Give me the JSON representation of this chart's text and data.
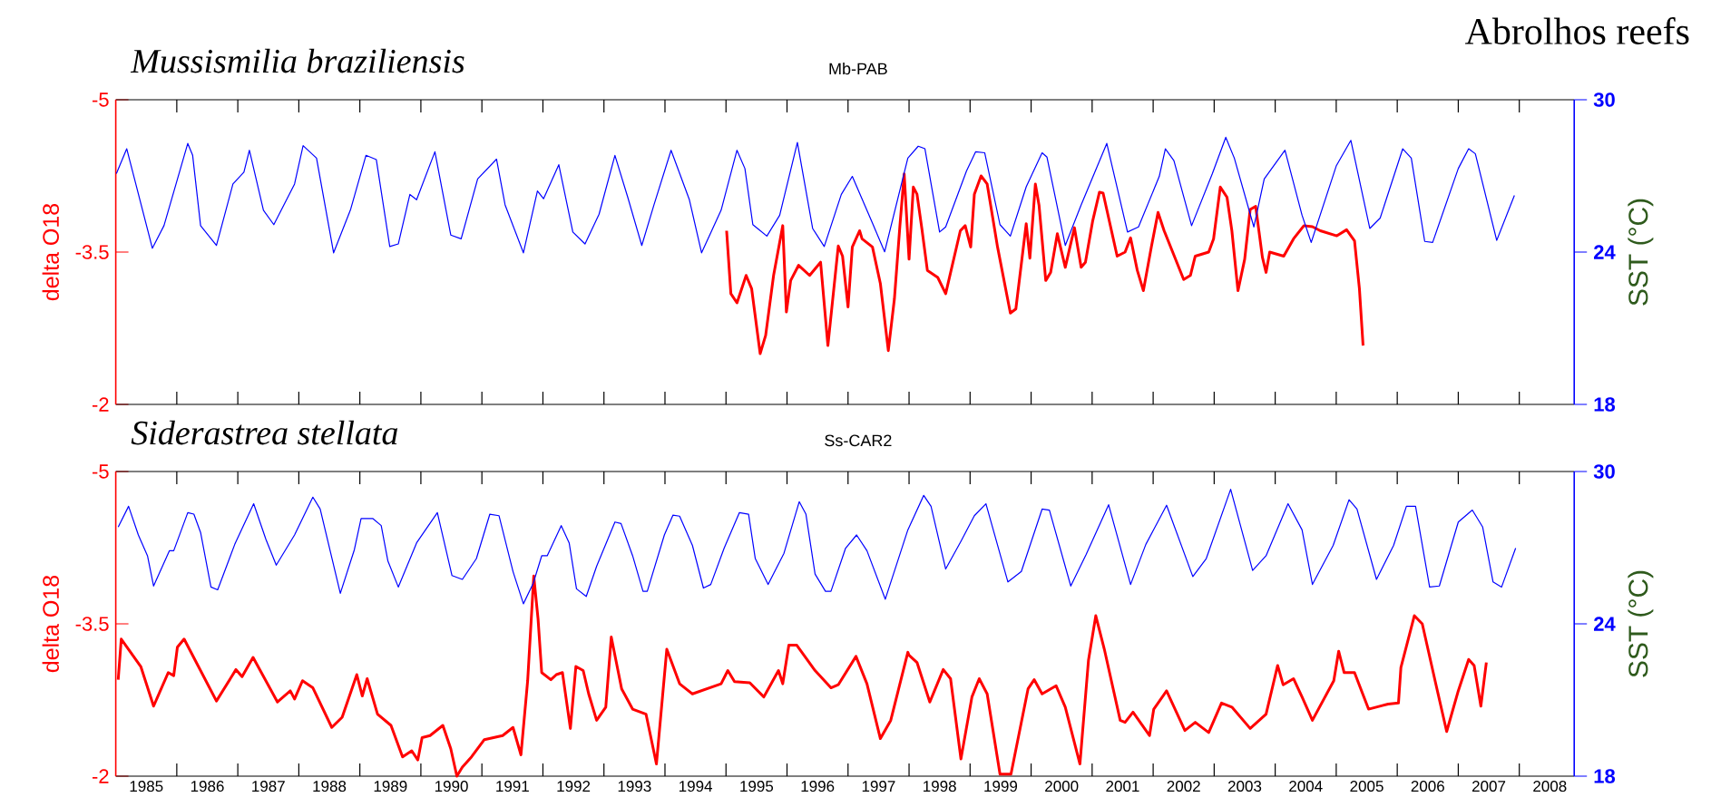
{
  "chart_data": [
    {
      "type": "line",
      "title": "Mussismilia braziliensis",
      "subtitle": "Mb-PAB",
      "ylabel": "delta O18",
      "y2label": "SST (°C)",
      "annotations": [
        "Abrolhos reefs"
      ],
      "xlim": [
        1985,
        2008.9
      ],
      "ylim": [
        -2,
        -5
      ],
      "yticks": [
        -5,
        -3.5,
        -2
      ],
      "y2lim": [
        18,
        30
      ],
      "y2ticks": [
        18,
        24,
        30
      ],
      "tick_labels": "y",
      "xticks": [
        {
          "value": 1986,
          "label": null
        },
        {
          "value": 1987,
          "label": null
        },
        {
          "value": 1988,
          "label": null
        },
        {
          "value": 1989,
          "label": null
        },
        {
          "value": 1990,
          "label": null
        },
        {
          "value": 1991,
          "label": null
        },
        {
          "value": 1992,
          "label": null
        },
        {
          "value": 1993,
          "label": null
        },
        {
          "value": 1994,
          "label": null
        },
        {
          "value": 1995,
          "label": null
        },
        {
          "value": 1996,
          "label": null
        },
        {
          "value": 1997,
          "label": null
        },
        {
          "value": 1998,
          "label": null
        },
        {
          "value": 1999,
          "label": null
        },
        {
          "value": 2000,
          "label": null
        },
        {
          "value": 2001,
          "label": null
        },
        {
          "value": 2002,
          "label": null
        },
        {
          "value": 2003,
          "label": null
        },
        {
          "value": 2004,
          "label": null
        },
        {
          "value": 2005,
          "label": null
        },
        {
          "value": 2006,
          "label": null
        },
        {
          "value": 2007,
          "label": null
        },
        {
          "value": 2008,
          "label": null
        }
      ],
      "series": [
        {
          "color": "#0000ff",
          "axis": "y2",
          "x": [
            1985.01,
            1985.18,
            1985.6,
            1985.79,
            1986.18,
            1986.26,
            1986.39,
            1986.65,
            1986.92,
            1987.1,
            1987.19,
            1987.42,
            1987.59,
            1987.93,
            1988.07,
            1988.29,
            1988.57,
            1988.85,
            1989.1,
            1989.27,
            1989.49,
            1989.63,
            1989.82,
            1989.93,
            1990.23,
            1990.49,
            1990.66,
            1990.93,
            1991.24,
            1991.38,
            1991.68,
            1991.91,
            1992.01,
            1992.26,
            1992.49,
            1992.69,
            1992.92,
            1993.18,
            1993.39,
            1993.62,
            1993.82,
            1994.1,
            1994.4,
            1994.6,
            1994.92,
            1995.18,
            1995.31,
            1995.44,
            1995.67,
            1995.88,
            1996.17,
            1996.42,
            1996.61,
            1996.89,
            1997.07,
            1997.4,
            1997.6,
            1997.98,
            1998.15,
            1998.26,
            1998.5,
            1998.6,
            1998.94,
            1999.09,
            1999.24,
            1999.49,
            1999.66,
            1999.92,
            2000.18,
            2000.26,
            2000.56,
            2000.82,
            2001.24,
            2001.58,
            2001.76,
            2002.1,
            2002.2,
            2002.34,
            2002.63,
            2002.97,
            2003.19,
            2003.33,
            2003.65,
            2003.82,
            2004.16,
            2004.44,
            2004.59,
            2005.0,
            2005.24,
            2005.55,
            2005.72,
            2006.09,
            2006.23,
            2006.45,
            2006.58,
            2007.0,
            2007.17,
            2007.28,
            2007.63,
            2007.92
          ],
          "values": [
            27.09,
            28.07,
            24.15,
            25.04,
            28.28,
            27.81,
            25.04,
            24.26,
            26.68,
            27.15,
            28.01,
            25.65,
            25.08,
            26.68,
            28.19,
            27.7,
            23.97,
            25.69,
            27.81,
            27.64,
            24.22,
            24.32,
            26.27,
            26.06,
            27.95,
            24.67,
            24.52,
            26.88,
            27.66,
            25.86,
            23.97,
            26.41,
            26.1,
            27.44,
            24.79,
            24.32,
            25.49,
            27.81,
            26.16,
            24.26,
            25.86,
            28.01,
            26.06,
            23.97,
            25.65,
            28.01,
            27.29,
            25.08,
            24.63,
            25.45,
            28.32,
            24.93,
            24.22,
            26.27,
            26.98,
            25.14,
            24.01,
            27.7,
            28.17,
            28.07,
            24.79,
            24.99,
            27.19,
            27.95,
            27.91,
            25.08,
            24.63,
            26.57,
            27.91,
            27.74,
            24.26,
            25.86,
            28.28,
            24.79,
            24.99,
            26.98,
            28.07,
            27.6,
            25.04,
            27.09,
            28.52,
            27.7,
            24.99,
            26.88,
            28.01,
            25.45,
            24.38,
            27.39,
            28.4,
            24.93,
            25.34,
            28.07,
            27.7,
            24.42,
            24.38,
            27.29,
            28.07,
            27.87,
            24.46,
            26.23
          ]
        },
        {
          "color": "#ff0000",
          "axis": "y",
          "x": [
            1995.01,
            1995.08,
            1995.18,
            1995.33,
            1995.42,
            1995.56,
            1995.65,
            1995.78,
            1995.93,
            1995.99,
            1996.06,
            1996.19,
            1996.37,
            1996.55,
            1996.67,
            1996.84,
            1996.91,
            1997.0,
            1997.07,
            1997.19,
            1997.23,
            1997.4,
            1997.53,
            1997.66,
            1997.76,
            1997.85,
            1997.92,
            1998.0,
            1998.07,
            1998.13,
            1998.21,
            1998.3,
            1998.47,
            1998.6,
            1998.84,
            1998.92,
            1999.01,
            1999.07,
            1999.18,
            1999.28,
            1999.45,
            1999.66,
            1999.75,
            1999.92,
            1999.98,
            2000.07,
            2000.13,
            2000.24,
            2000.32,
            2000.43,
            2000.56,
            2000.71,
            2000.82,
            2000.89,
            2001.01,
            2001.12,
            2001.18,
            2001.41,
            2001.54,
            2001.63,
            2001.74,
            2001.84,
            2001.97,
            2002.08,
            2002.18,
            2002.5,
            2002.61,
            2002.69,
            2002.91,
            2002.99,
            2003.1,
            2003.21,
            2003.29,
            2003.39,
            2003.5,
            2003.59,
            2003.68,
            2003.79,
            2003.85,
            2003.91,
            2004.14,
            2004.3,
            2004.47,
            2004.61,
            2004.74,
            2005.01,
            2005.17,
            2005.3,
            2005.38,
            2005.44
          ],
          "values": [
            -3.71,
            -3.09,
            -3.0,
            -3.27,
            -3.14,
            -2.5,
            -2.68,
            -3.27,
            -3.76,
            -2.91,
            -3.22,
            -3.37,
            -3.27,
            -3.4,
            -2.58,
            -3.56,
            -3.46,
            -2.96,
            -3.55,
            -3.71,
            -3.63,
            -3.55,
            -3.19,
            -2.53,
            -3.04,
            -3.76,
            -4.27,
            -3.43,
            -4.14,
            -4.07,
            -3.73,
            -3.32,
            -3.25,
            -3.09,
            -3.71,
            -3.76,
            -3.55,
            -4.07,
            -4.25,
            -4.17,
            -3.55,
            -2.9,
            -2.94,
            -3.78,
            -3.44,
            -4.17,
            -3.96,
            -3.22,
            -3.3,
            -3.68,
            -3.35,
            -3.74,
            -3.35,
            -3.4,
            -3.81,
            -4.09,
            -4.08,
            -3.46,
            -3.5,
            -3.64,
            -3.32,
            -3.12,
            -3.55,
            -3.89,
            -3.71,
            -3.23,
            -3.27,
            -3.46,
            -3.5,
            -3.63,
            -4.14,
            -4.04,
            -3.71,
            -3.12,
            -3.43,
            -3.92,
            -3.95,
            -3.45,
            -3.3,
            -3.5,
            -3.46,
            -3.63,
            -3.76,
            -3.75,
            -3.71,
            -3.66,
            -3.72,
            -3.61,
            -3.14,
            -2.58
          ]
        }
      ]
    },
    {
      "type": "line",
      "title": "Siderastrea stellata",
      "subtitle": "Ss-CAR2",
      "ylabel": "delta O18",
      "y2label": "SST (°C)",
      "xlim": [
        1985,
        2008.9
      ],
      "ylim": [
        -2,
        -5
      ],
      "yticks": [
        -5,
        -3.5,
        -2
      ],
      "y2lim": [
        18,
        30
      ],
      "y2ticks": [
        18,
        24,
        30
      ],
      "xticks": [
        {
          "value": 1985.5,
          "label": "1985"
        },
        {
          "value": 1986.5,
          "label": "1986"
        },
        {
          "value": 1987.5,
          "label": "1987"
        },
        {
          "value": 1988.5,
          "label": "1988"
        },
        {
          "value": 1989.5,
          "label": "1989"
        },
        {
          "value": 1990.5,
          "label": "1990"
        },
        {
          "value": 1991.5,
          "label": "1991"
        },
        {
          "value": 1992.5,
          "label": "1992"
        },
        {
          "value": 1993.5,
          "label": "1993"
        },
        {
          "value": 1994.5,
          "label": "1994"
        },
        {
          "value": 1995.5,
          "label": "1995"
        },
        {
          "value": 1996.5,
          "label": "1996"
        },
        {
          "value": 1997.5,
          "label": "1997"
        },
        {
          "value": 1998.5,
          "label": "1998"
        },
        {
          "value": 1999.5,
          "label": "1999"
        },
        {
          "value": 2000.5,
          "label": "2000"
        },
        {
          "value": 2001.5,
          "label": "2001"
        },
        {
          "value": 2002.5,
          "label": "2002"
        },
        {
          "value": 2003.5,
          "label": "2003"
        },
        {
          "value": 2004.5,
          "label": "2004"
        },
        {
          "value": 2005.5,
          "label": "2005"
        },
        {
          "value": 2006.5,
          "label": "2006"
        },
        {
          "value": 2007.5,
          "label": "2007"
        },
        {
          "value": 2008.5,
          "label": "2008"
        },
        {
          "value": 1986,
          "label": null
        },
        {
          "value": 1987,
          "label": null
        },
        {
          "value": 1988,
          "label": null
        },
        {
          "value": 1989,
          "label": null
        },
        {
          "value": 1990,
          "label": null
        },
        {
          "value": 1991,
          "label": null
        },
        {
          "value": 1992,
          "label": null
        },
        {
          "value": 1993,
          "label": null
        },
        {
          "value": 1994,
          "label": null
        },
        {
          "value": 1995,
          "label": null
        },
        {
          "value": 1996,
          "label": null
        },
        {
          "value": 1997,
          "label": null
        },
        {
          "value": 1998,
          "label": null
        },
        {
          "value": 1999,
          "label": null
        },
        {
          "value": 2000,
          "label": null
        },
        {
          "value": 2001,
          "label": null
        },
        {
          "value": 2002,
          "label": null
        },
        {
          "value": 2003,
          "label": null
        },
        {
          "value": 2004,
          "label": null
        },
        {
          "value": 2005,
          "label": null
        },
        {
          "value": 2006,
          "label": null
        },
        {
          "value": 2007,
          "label": null
        },
        {
          "value": 2008,
          "label": null
        }
      ],
      "series": [
        {
          "color": "#0000ff",
          "axis": "y2",
          "x": [
            1985.04,
            1985.21,
            1985.37,
            1985.52,
            1985.62,
            1985.88,
            1985.95,
            1986.18,
            1986.28,
            1986.39,
            1986.56,
            1986.67,
            1986.95,
            1987.26,
            1987.46,
            1987.63,
            1987.93,
            1988.23,
            1988.35,
            1988.68,
            1988.91,
            1989.02,
            1989.21,
            1989.35,
            1989.46,
            1989.63,
            1989.93,
            1990.27,
            1990.51,
            1990.68,
            1990.91,
            1991.13,
            1991.28,
            1991.51,
            1991.68,
            1991.84,
            1991.98,
            1992.07,
            1992.3,
            1992.43,
            1992.55,
            1992.71,
            1992.88,
            1993.18,
            1993.28,
            1993.47,
            1993.64,
            1993.71,
            1993.99,
            1994.13,
            1994.24,
            1994.45,
            1994.63,
            1994.75,
            1994.97,
            1995.22,
            1995.37,
            1995.48,
            1995.69,
            1995.95,
            1996.2,
            1996.31,
            1996.46,
            1996.63,
            1996.72,
            1996.96,
            1997.14,
            1997.31,
            1997.61,
            1997.98,
            1998.24,
            1998.36,
            1998.6,
            1998.85,
            1999.07,
            1999.26,
            1999.62,
            1999.84,
            2000.18,
            2000.3,
            2000.65,
            2000.9,
            2001.27,
            2001.63,
            2001.88,
            2002.22,
            2002.65,
            2002.87,
            2003.27,
            2003.63,
            2003.85,
            2004.21,
            2004.44,
            2004.61,
            2004.95,
            2005.21,
            2005.34,
            2005.66,
            2005.94,
            2006.15,
            2006.3,
            2006.53,
            2006.69,
            2007.0,
            2007.23,
            2007.4,
            2007.57,
            2007.71,
            2007.94
          ],
          "values": [
            27.81,
            28.63,
            27.5,
            26.68,
            25.49,
            26.88,
            26.88,
            28.38,
            28.32,
            27.6,
            25.45,
            25.34,
            27.13,
            28.73,
            27.33,
            26.31,
            27.5,
            28.99,
            28.52,
            25.2,
            26.92,
            28.15,
            28.15,
            27.87,
            26.47,
            25.45,
            27.19,
            28.38,
            25.9,
            25.75,
            26.57,
            28.32,
            28.26,
            26.06,
            24.79,
            25.59,
            26.68,
            26.68,
            27.87,
            27.19,
            25.38,
            25.08,
            26.27,
            28.01,
            27.95,
            26.68,
            25.28,
            25.28,
            27.5,
            28.28,
            28.24,
            27.09,
            25.41,
            25.55,
            26.98,
            28.38,
            28.32,
            26.57,
            25.55,
            26.78,
            28.81,
            28.32,
            25.96,
            25.28,
            25.28,
            26.98,
            27.5,
            26.88,
            24.97,
            27.7,
            29.06,
            28.63,
            26.16,
            27.25,
            28.26,
            28.73,
            25.65,
            26.06,
            28.52,
            28.48,
            25.49,
            26.72,
            28.69,
            25.55,
            27.13,
            28.67,
            25.86,
            26.57,
            29.3,
            26.1,
            26.68,
            28.73,
            27.7,
            25.55,
            27.09,
            28.89,
            28.52,
            25.75,
            27.09,
            28.63,
            28.63,
            25.45,
            25.49,
            28.01,
            28.48,
            27.81,
            25.65,
            25.45,
            26.98
          ]
        },
        {
          "color": "#ff0000",
          "axis": "y",
          "x": [
            1985.04,
            1985.09,
            1985.41,
            1985.62,
            1985.86,
            1985.95,
            1986.01,
            1986.12,
            1986.65,
            1986.97,
            1987.07,
            1987.25,
            1987.65,
            1987.86,
            1987.93,
            1988.06,
            1988.23,
            1988.54,
            1988.71,
            1988.95,
            1989.04,
            1989.12,
            1989.29,
            1989.51,
            1989.7,
            1989.85,
            1989.95,
            1990.02,
            1990.15,
            1990.36,
            1990.49,
            1990.59,
            1990.68,
            1990.83,
            1991.04,
            1991.34,
            1991.51,
            1991.64,
            1991.75,
            1991.85,
            1991.92,
            1991.98,
            1992.13,
            1992.22,
            1992.32,
            1992.45,
            1992.54,
            1992.66,
            1992.75,
            1992.88,
            1993.03,
            1993.12,
            1993.29,
            1993.47,
            1993.69,
            1993.86,
            1994.03,
            1994.24,
            1994.45,
            1994.92,
            1995.03,
            1995.14,
            1995.39,
            1995.62,
            1995.86,
            1995.93,
            1996.03,
            1996.16,
            1996.46,
            1996.72,
            1996.84,
            1997.13,
            1997.31,
            1997.53,
            1997.7,
            1997.98,
            1998.0,
            1998.13,
            1998.34,
            1998.56,
            1998.68,
            1998.85,
            1999.03,
            1999.15,
            1999.28,
            1999.49,
            1999.67,
            1999.95,
            2000.05,
            2000.18,
            2000.41,
            2000.56,
            2000.8,
            2000.94,
            2001.06,
            2001.2,
            2001.46,
            2001.54,
            2001.67,
            2001.94,
            2002.01,
            2002.22,
            2002.52,
            2002.69,
            2002.91,
            2003.12,
            2003.29,
            2003.59,
            2003.85,
            2004.04,
            2004.13,
            2004.3,
            2004.44,
            2004.61,
            2004.96,
            2005.04,
            2005.13,
            2005.3,
            2005.53,
            2005.85,
            2006.02,
            2006.06,
            2006.28,
            2006.41,
            2006.62,
            2006.81,
            2007.0,
            2007.17,
            2007.26,
            2007.37,
            2007.46
          ],
          "values": [
            -2.95,
            -3.35,
            -3.08,
            -2.69,
            -3.02,
            -2.99,
            -3.27,
            -3.35,
            -2.74,
            -3.05,
            -2.98,
            -3.17,
            -2.73,
            -2.84,
            -2.76,
            -2.94,
            -2.87,
            -2.48,
            -2.58,
            -3.0,
            -2.79,
            -2.96,
            -2.61,
            -2.5,
            -2.19,
            -2.25,
            -2.16,
            -2.38,
            -2.4,
            -2.5,
            -2.27,
            -2.0,
            -2.09,
            -2.19,
            -2.36,
            -2.4,
            -2.48,
            -2.21,
            -2.94,
            -3.97,
            -3.55,
            -3.02,
            -2.95,
            -3.0,
            -3.02,
            -2.47,
            -3.08,
            -3.04,
            -2.81,
            -2.55,
            -2.68,
            -3.37,
            -2.86,
            -2.66,
            -2.61,
            -2.12,
            -3.25,
            -2.91,
            -2.81,
            -2.91,
            -3.04,
            -2.93,
            -2.92,
            -2.78,
            -3.04,
            -2.91,
            -3.29,
            -3.29,
            -3.04,
            -2.87,
            -2.9,
            -3.18,
            -2.91,
            -2.37,
            -2.55,
            -3.22,
            -3.19,
            -3.12,
            -2.73,
            -3.05,
            -2.96,
            -2.17,
            -2.78,
            -2.96,
            -2.81,
            -2.02,
            -2.02,
            -2.86,
            -2.95,
            -2.81,
            -2.89,
            -2.68,
            -2.12,
            -3.14,
            -3.58,
            -3.25,
            -2.55,
            -2.53,
            -2.63,
            -2.4,
            -2.66,
            -2.84,
            -2.45,
            -2.53,
            -2.43,
            -2.72,
            -2.68,
            -2.47,
            -2.61,
            -3.09,
            -2.9,
            -2.96,
            -2.78,
            -2.55,
            -2.94,
            -3.23,
            -3.02,
            -3.02,
            -2.66,
            -2.71,
            -2.72,
            -3.07,
            -3.58,
            -3.5,
            -2.94,
            -2.44,
            -2.84,
            -3.15,
            -3.09,
            -2.69,
            -3.12
          ]
        }
      ]
    }
  ]
}
